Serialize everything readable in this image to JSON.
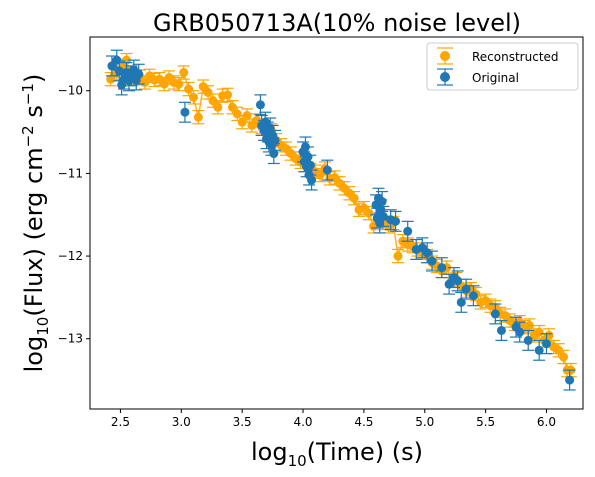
{
  "chart_data": {
    "type": "scatter",
    "title": "GRB050713A(10% noise level)",
    "xlabel_parts": [
      "log",
      "10",
      "(Time) (s)"
    ],
    "ylabel_parts": [
      "log",
      "10",
      "(Flux) (erg cm",
      "−2",
      " s",
      "−1",
      ")"
    ],
    "xlim": [
      2.25,
      6.3
    ],
    "ylim": [
      -13.85,
      -9.35
    ],
    "xticks": [
      2.5,
      3.0,
      3.5,
      4.0,
      4.5,
      5.0,
      5.5,
      6.0
    ],
    "xtick_labels": [
      "2.5",
      "3.0",
      "3.5",
      "4.0",
      "4.5",
      "5.0",
      "5.5",
      "6.0"
    ],
    "yticks": [
      -10,
      -11,
      -12,
      -13
    ],
    "ytick_labels": [
      "−10",
      "−11",
      "−12",
      "−13"
    ],
    "legend_position": "upper-right",
    "grid": false,
    "series": [
      {
        "name": "Reconstructed",
        "color": "#ffa500",
        "marker": "circle",
        "error_bars": true,
        "trend_line": true,
        "points": [
          [
            2.42,
            -9.86,
            0.08
          ],
          [
            2.47,
            -9.79,
            0.08
          ],
          [
            2.52,
            -9.7,
            0.08
          ],
          [
            2.55,
            -9.63,
            0.08
          ],
          [
            2.58,
            -9.8,
            0.08
          ],
          [
            2.62,
            -9.85,
            0.08
          ],
          [
            2.66,
            -9.83,
            0.08
          ],
          [
            2.7,
            -9.9,
            0.08
          ],
          [
            2.74,
            -9.82,
            0.08
          ],
          [
            2.78,
            -9.87,
            0.08
          ],
          [
            2.82,
            -9.86,
            0.08
          ],
          [
            2.86,
            -9.92,
            0.08
          ],
          [
            2.9,
            -9.84,
            0.08
          ],
          [
            2.94,
            -9.9,
            0.08
          ],
          [
            2.98,
            -9.92,
            0.08
          ],
          [
            3.02,
            -9.78,
            0.08
          ],
          [
            3.06,
            -9.98,
            0.08
          ],
          [
            3.1,
            -10.08,
            0.08
          ],
          [
            3.14,
            -10.32,
            0.08
          ],
          [
            3.18,
            -9.95,
            0.08
          ],
          [
            3.22,
            -10.02,
            0.08
          ],
          [
            3.26,
            -10.12,
            0.08
          ],
          [
            3.3,
            -10.2,
            0.08
          ],
          [
            3.34,
            -10.06,
            0.08
          ],
          [
            3.38,
            -10.05,
            0.08
          ],
          [
            3.42,
            -10.2,
            0.08
          ],
          [
            3.46,
            -10.28,
            0.08
          ],
          [
            3.5,
            -10.38,
            0.08
          ],
          [
            3.54,
            -10.3,
            0.08
          ],
          [
            3.58,
            -10.42,
            0.08
          ],
          [
            3.62,
            -10.36,
            0.08
          ],
          [
            3.66,
            -10.44,
            0.08
          ],
          [
            3.7,
            -10.52,
            0.08
          ],
          [
            3.74,
            -10.48,
            0.08
          ],
          [
            3.78,
            -10.6,
            0.08
          ],
          [
            3.82,
            -10.66,
            0.08
          ],
          [
            3.86,
            -10.7,
            0.08
          ],
          [
            3.9,
            -10.76,
            0.08
          ],
          [
            3.94,
            -10.82,
            0.08
          ],
          [
            3.98,
            -10.86,
            0.08
          ],
          [
            4.02,
            -10.9,
            0.08
          ],
          [
            4.06,
            -10.96,
            0.08
          ],
          [
            4.1,
            -10.98,
            0.08
          ],
          [
            4.14,
            -11.02,
            0.08
          ],
          [
            4.18,
            -10.94,
            0.08
          ],
          [
            4.22,
            -11.06,
            0.08
          ],
          [
            4.26,
            -11.05,
            0.08
          ],
          [
            4.3,
            -11.12,
            0.08
          ],
          [
            4.34,
            -11.18,
            0.08
          ],
          [
            4.38,
            -11.24,
            0.08
          ],
          [
            4.42,
            -11.3,
            0.08
          ],
          [
            4.46,
            -11.44,
            0.08
          ],
          [
            4.5,
            -11.42,
            0.08
          ],
          [
            4.54,
            -11.48,
            0.08
          ],
          [
            4.58,
            -11.64,
            0.08
          ],
          [
            4.62,
            -11.56,
            0.08
          ],
          [
            4.66,
            -11.6,
            0.08
          ],
          [
            4.7,
            -11.64,
            0.08
          ],
          [
            4.74,
            -11.6,
            0.08
          ],
          [
            4.78,
            -12.0,
            0.08
          ],
          [
            4.82,
            -11.82,
            0.08
          ],
          [
            4.86,
            -11.86,
            0.08
          ],
          [
            4.9,
            -11.88,
            0.08
          ],
          [
            4.94,
            -11.92,
            0.08
          ],
          [
            4.98,
            -11.96,
            0.08
          ],
          [
            5.02,
            -12.0,
            0.08
          ],
          [
            5.06,
            -12.08,
            0.08
          ],
          [
            5.1,
            -12.12,
            0.08
          ],
          [
            5.14,
            -12.18,
            0.08
          ],
          [
            5.18,
            -12.14,
            0.08
          ],
          [
            5.22,
            -12.3,
            0.08
          ],
          [
            5.26,
            -12.28,
            0.08
          ],
          [
            5.3,
            -12.36,
            0.08
          ],
          [
            5.34,
            -12.42,
            0.08
          ],
          [
            5.38,
            -12.4,
            0.08
          ],
          [
            5.42,
            -12.46,
            0.08
          ],
          [
            5.46,
            -12.56,
            0.08
          ],
          [
            5.5,
            -12.54,
            0.08
          ],
          [
            5.54,
            -12.6,
            0.08
          ],
          [
            5.58,
            -12.62,
            0.08
          ],
          [
            5.62,
            -12.7,
            0.08
          ],
          [
            5.66,
            -12.72,
            0.08
          ],
          [
            5.7,
            -12.78,
            0.08
          ],
          [
            5.74,
            -12.82,
            0.08
          ],
          [
            5.78,
            -12.8,
            0.08
          ],
          [
            5.82,
            -12.86,
            0.08
          ],
          [
            5.86,
            -12.84,
            0.08
          ],
          [
            5.9,
            -12.96,
            0.08
          ],
          [
            5.94,
            -12.92,
            0.08
          ],
          [
            5.98,
            -13.02,
            0.08
          ],
          [
            6.02,
            -12.96,
            0.08
          ],
          [
            6.06,
            -13.1,
            0.08
          ],
          [
            6.1,
            -13.14,
            0.08
          ],
          [
            6.14,
            -13.22,
            0.08
          ],
          [
            6.17,
            -13.38,
            0.08
          ],
          [
            6.2,
            -13.38,
            0.08
          ]
        ]
      },
      {
        "name": "Original",
        "color": "#1f77b4",
        "marker": "circle",
        "error_bars": true,
        "points": [
          [
            2.43,
            -9.7,
            0.12
          ],
          [
            2.47,
            -9.63,
            0.12
          ],
          [
            2.49,
            -9.76,
            0.12
          ],
          [
            2.51,
            -9.93,
            0.12
          ],
          [
            2.53,
            -9.86,
            0.12
          ],
          [
            2.55,
            -9.78,
            0.12
          ],
          [
            2.57,
            -9.88,
            0.12
          ],
          [
            2.59,
            -9.82,
            0.12
          ],
          [
            2.61,
            -9.75,
            0.12
          ],
          [
            2.63,
            -9.87,
            0.12
          ],
          [
            2.65,
            -9.8,
            0.12
          ],
          [
            3.03,
            -10.26,
            0.12
          ],
          [
            3.65,
            -10.17,
            0.12
          ],
          [
            3.66,
            -10.42,
            0.12
          ],
          [
            3.68,
            -10.48,
            0.12
          ],
          [
            3.69,
            -10.38,
            0.12
          ],
          [
            3.7,
            -10.58,
            0.12
          ],
          [
            3.71,
            -10.5,
            0.12
          ],
          [
            3.72,
            -10.62,
            0.12
          ],
          [
            3.73,
            -10.45,
            0.12
          ],
          [
            3.74,
            -10.66,
            0.12
          ],
          [
            3.75,
            -10.54,
            0.12
          ],
          [
            3.76,
            -10.76,
            0.12
          ],
          [
            3.77,
            -10.6,
            0.12
          ],
          [
            4.0,
            -10.74,
            0.12
          ],
          [
            4.01,
            -10.86,
            0.12
          ],
          [
            4.02,
            -10.68,
            0.12
          ],
          [
            4.03,
            -10.92,
            0.12
          ],
          [
            4.04,
            -10.8,
            0.12
          ],
          [
            4.05,
            -11.02,
            0.12
          ],
          [
            4.06,
            -10.9,
            0.12
          ],
          [
            4.07,
            -11.08,
            0.12
          ],
          [
            4.2,
            -10.96,
            0.12
          ],
          [
            4.6,
            -11.38,
            0.12
          ],
          [
            4.61,
            -11.54,
            0.12
          ],
          [
            4.62,
            -11.3,
            0.12
          ],
          [
            4.63,
            -11.6,
            0.12
          ],
          [
            4.64,
            -11.44,
            0.12
          ],
          [
            4.65,
            -11.34,
            0.12
          ],
          [
            4.66,
            -11.52,
            0.12
          ],
          [
            4.72,
            -11.56,
            0.12
          ],
          [
            4.76,
            -11.58,
            0.12
          ],
          [
            4.86,
            -11.7,
            0.12
          ],
          [
            4.93,
            -11.92,
            0.12
          ],
          [
            4.98,
            -11.9,
            0.12
          ],
          [
            5.02,
            -11.96,
            0.12
          ],
          [
            5.06,
            -12.06,
            0.12
          ],
          [
            5.14,
            -12.14,
            0.12
          ],
          [
            5.2,
            -12.34,
            0.12
          ],
          [
            5.24,
            -12.26,
            0.12
          ],
          [
            5.27,
            -12.3,
            0.12
          ],
          [
            5.3,
            -12.56,
            0.12
          ],
          [
            5.34,
            -12.4,
            0.12
          ],
          [
            5.4,
            -12.48,
            0.12
          ],
          [
            5.58,
            -12.7,
            0.12
          ],
          [
            5.63,
            -12.9,
            0.12
          ],
          [
            5.75,
            -12.86,
            0.12
          ],
          [
            5.78,
            -12.92,
            0.12
          ],
          [
            5.85,
            -13.02,
            0.12
          ],
          [
            5.94,
            -13.14,
            0.12
          ],
          [
            6.0,
            -13.06,
            0.12
          ],
          [
            6.19,
            -13.5,
            0.12
          ]
        ]
      }
    ]
  }
}
